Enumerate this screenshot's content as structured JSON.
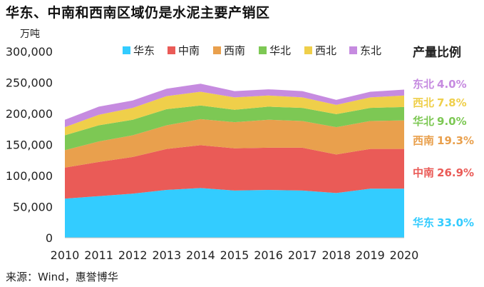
{
  "title": "华东、中南和西南区域仍是水泥主要产销区",
  "source": "来源：Wind，惠誉博华",
  "chart_data": {
    "type": "area",
    "stacked": true,
    "ylabel": "万吨",
    "ylim": [
      0,
      300000
    ],
    "yticks": [
      0,
      50000,
      100000,
      150000,
      200000,
      250000,
      300000
    ],
    "ytick_labels": [
      "0",
      "50,000",
      "100,000",
      "150,000",
      "200,000",
      "250,000",
      "300,000"
    ],
    "x": [
      "2010",
      "2011",
      "2012",
      "2013",
      "2014",
      "2015",
      "2016",
      "2017",
      "2018",
      "2019",
      "2020"
    ],
    "grid": false,
    "legend_position": "top",
    "series": [
      {
        "name": "华东",
        "color": "#33CCFF",
        "values": [
          63000,
          67000,
          71000,
          77000,
          80000,
          76000,
          77000,
          76000,
          72000,
          79000,
          79000
        ]
      },
      {
        "name": "中南",
        "color": "#EA5B57",
        "values": [
          50000,
          55000,
          59000,
          66000,
          69000,
          68000,
          68000,
          69000,
          62000,
          64000,
          64000
        ]
      },
      {
        "name": "西南",
        "color": "#E9A04D",
        "values": [
          28000,
          33000,
          35000,
          38000,
          42000,
          42000,
          45000,
          43000,
          44000,
          45000,
          46000
        ]
      },
      {
        "name": "华北",
        "color": "#7DC854",
        "values": [
          24000,
          26000,
          25000,
          26000,
          22000,
          20000,
          21000,
          21000,
          21000,
          21000,
          21500
        ]
      },
      {
        "name": "西北",
        "color": "#EFCF4A",
        "values": [
          13000,
          17000,
          19000,
          21000,
          22000,
          20000,
          18000,
          17000,
          15000,
          17000,
          18500
        ]
      },
      {
        "name": "东北",
        "color": "#C68BE0",
        "values": [
          12000,
          13000,
          12000,
          12000,
          13000,
          10000,
          10000,
          10000,
          8000,
          9000,
          9500
        ]
      }
    ]
  },
  "share": {
    "title": "产量比例",
    "items": [
      {
        "name": "东北",
        "value": "4.0%",
        "color": "#C68BE0"
      },
      {
        "name": "西北",
        "value": "7.8%",
        "color": "#EFCF4A"
      },
      {
        "name": "华北",
        "value": "9.0%",
        "color": "#7DC854"
      },
      {
        "name": "西南",
        "value": "19.3%",
        "color": "#E9A04D"
      },
      {
        "name": "中南",
        "value": "26.9%",
        "color": "#EA5B57"
      },
      {
        "name": "华东",
        "value": "33.0%",
        "color": "#33CCFF"
      }
    ]
  }
}
